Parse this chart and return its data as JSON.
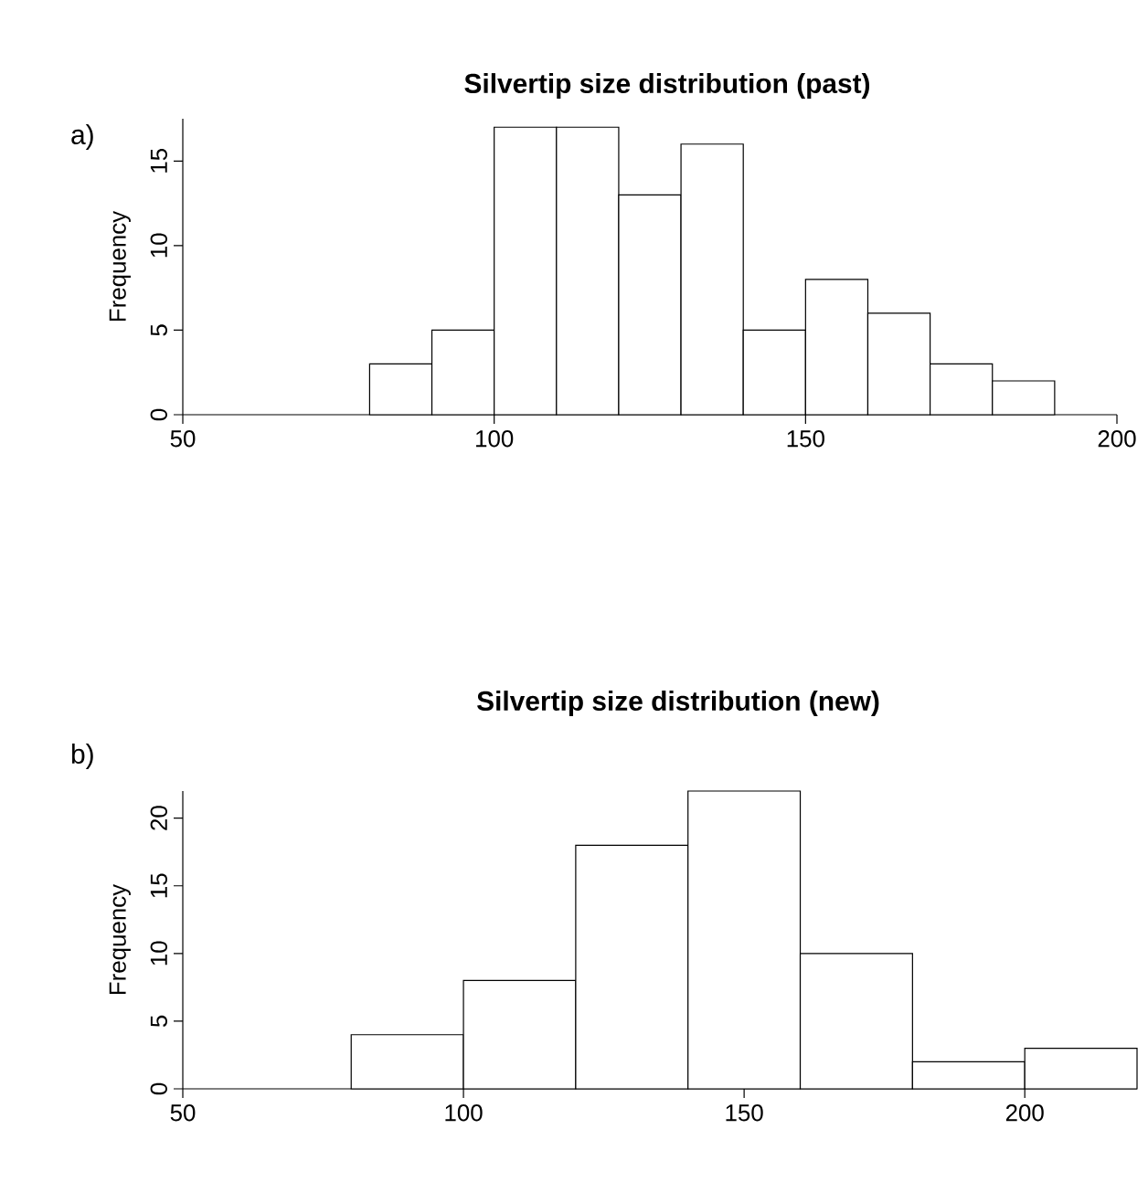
{
  "chart_data": [
    {
      "type": "histogram",
      "title": "Silvertip size distribution (past)",
      "ylabel": "Frequency",
      "annotations": [
        "a)"
      ],
      "bins": [
        80,
        90,
        100,
        110,
        120,
        130,
        140,
        150,
        160,
        170,
        180,
        190
      ],
      "values": [
        3,
        5,
        17,
        17,
        13,
        16,
        5,
        8,
        6,
        3,
        2
      ],
      "color": "#ffffff",
      "xlim": [
        50,
        200
      ],
      "xticks": [
        50,
        100,
        150,
        200
      ],
      "ylim": [
        0,
        17.5
      ],
      "yticks": [
        0,
        5,
        10,
        15
      ]
    },
    {
      "type": "histogram",
      "title": "Silvertip size distribution (new)",
      "ylabel": "Frequency",
      "annotations": [
        "b)"
      ],
      "bins": [
        80,
        100,
        120,
        140,
        160,
        180,
        200,
        220
      ],
      "values": [
        4,
        8,
        18,
        22,
        10,
        2,
        3
      ],
      "color": "#ffffff",
      "xlim": [
        50,
        220
      ],
      "xticks": [
        50,
        100,
        150,
        200
      ],
      "ylim": [
        0,
        22
      ],
      "yticks": [
        0,
        5,
        10,
        15,
        20
      ]
    }
  ]
}
